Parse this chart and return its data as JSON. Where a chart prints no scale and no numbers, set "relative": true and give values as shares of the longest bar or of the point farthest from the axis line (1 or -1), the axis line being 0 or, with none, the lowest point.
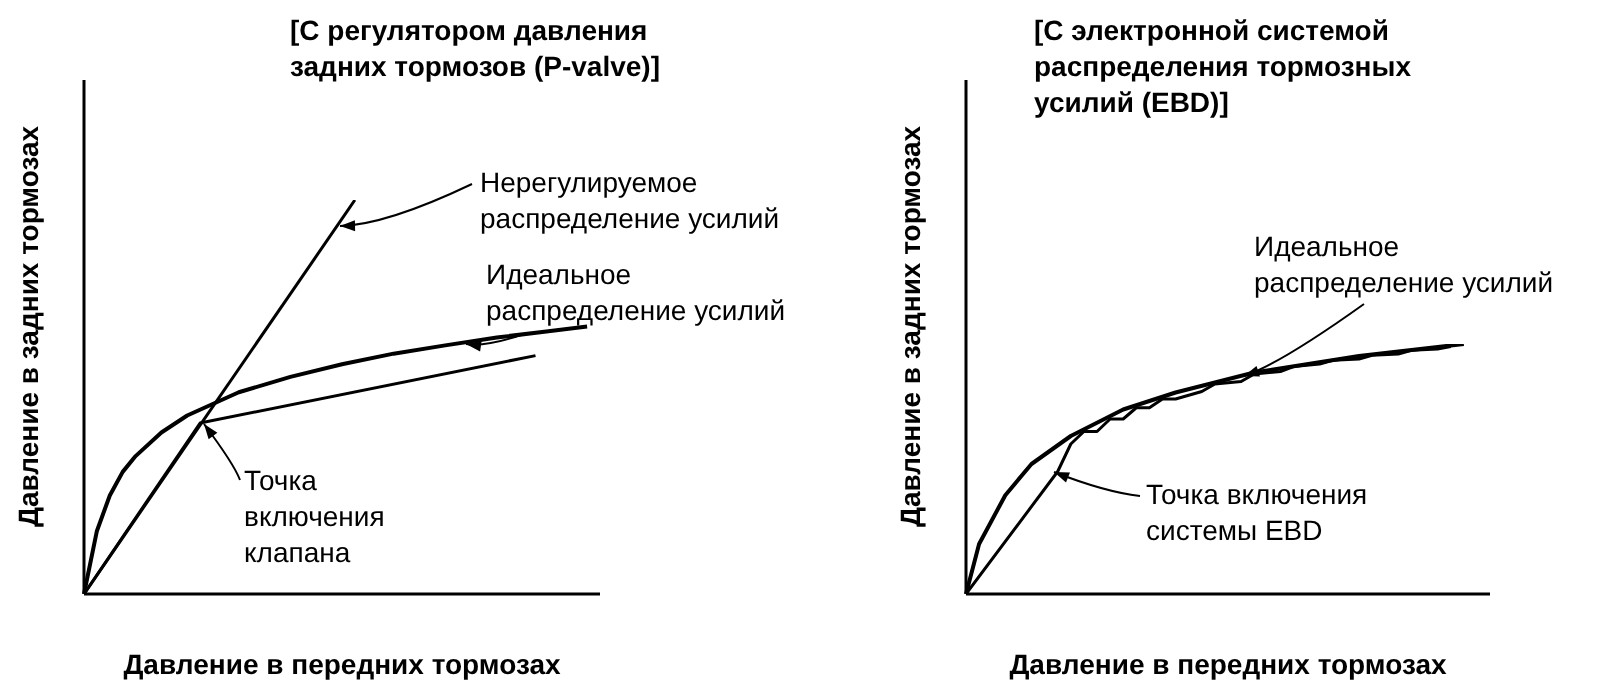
{
  "chart_data": [
    {
      "type": "line",
      "title": "[С регулятором давления\nзадних тормозов (P-valve)]",
      "xlabel": "Давление в передних тормозах",
      "ylabel": "Давление в задних тормозах",
      "relative": true,
      "marker": "none",
      "line_style": "solid",
      "categories": [
        null,
        null,
        null,
        null,
        null,
        null,
        null,
        null,
        null,
        null,
        null,
        null,
        null,
        null,
        null,
        null,
        null,
        null,
        null,
        null,
        null,
        null,
        null,
        null,
        null,
        null,
        null,
        null,
        null,
        null,
        null,
        null,
        null,
        null,
        null,
        null,
        null,
        null,
        null,
        null,
        null
      ],
      "series": [
        {
          "color": "#000000",
          "values": [
            0,
            null,
            null,
            null,
            null,
            null,
            null,
            null,
            null,
            null,
            null,
            null,
            null,
            null,
            null,
            null,
            null,
            null,
            null,
            null,
            null,
            1,
            null,
            null,
            null,
            null,
            null,
            null,
            null,
            null,
            null,
            null,
            null,
            null,
            null,
            null,
            null,
            null,
            null,
            null,
            null
          ]
        },
        {
          "color": "#000000",
          "values": [
            0,
            0.16,
            0.25,
            0.31,
            0.35,
            null,
            0.41,
            null,
            0.453,
            null,
            null,
            null,
            0.512,
            null,
            null,
            null,
            0.551,
            null,
            null,
            null,
            0.583,
            null,
            null,
            null,
            0.61,
            null,
            null,
            null,
            0.631,
            null,
            null,
            null,
            0.651,
            null,
            null,
            null,
            0.667,
            null,
            null,
            0.679,
            null
          ]
        },
        {
          "color": "#000000",
          "values": [
            0,
            null,
            null,
            null,
            null,
            null,
            null,
            null,
            null,
            0.434,
            null,
            null,
            null,
            null,
            null,
            null,
            null,
            null,
            null,
            null,
            null,
            null,
            null,
            null,
            null,
            null,
            null,
            null,
            null,
            null,
            null,
            null,
            null,
            null,
            null,
            0.605,
            null,
            null,
            null,
            null,
            null
          ]
        }
      ],
      "annotations": [
        "Нерегулируемое\nраспределение усилий",
        "Идеальное\nраспределение усилий",
        "Точка\nвключения\nклапана"
      ]
    },
    {
      "type": "line",
      "title": "[С электронной системой\nраспределения тормозных\nусилий (EBD)]",
      "xlabel": "Давление в передних тормозах",
      "ylabel": "Давление в задних тормозах",
      "relative": true,
      "marker": "none",
      "line_style": "solid",
      "categories": [
        null,
        null,
        null,
        null,
        null,
        null,
        null,
        null,
        null,
        null,
        null,
        null,
        null,
        null,
        null,
        null,
        null,
        null,
        null,
        null,
        null,
        null,
        null,
        null,
        null,
        null,
        null,
        null,
        null,
        null,
        null,
        null,
        null,
        null,
        null,
        null,
        null,
        null,
        null,
        null,
        null
      ],
      "series": [
        {
          "color": "#000000",
          "values": [
            0,
            0.2,
            null,
            0.395,
            null,
            0.52,
            null,
            null,
            0.632,
            null,
            null,
            null,
            0.738,
            null,
            null,
            null,
            0.806,
            null,
            null,
            null,
            null,
            null,
            0.886,
            null,
            null,
            null,
            null,
            null,
            null,
            null,
            0.952,
            null,
            null,
            null,
            null,
            null,
            null,
            null,
            1,
            null,
            null
          ]
        },
        {
          "color": "#000000",
          "values": [
            0,
            null,
            null,
            null,
            null,
            null,
            null,
            0.49,
            0.6,
            0.65,
            0.65,
            0.7,
            0.7,
            0.745,
            0.745,
            0.78,
            0.78,
            null,
            0.81,
            0.84,
            null,
            0.85,
            0.88,
            null,
            0.89,
            0.91,
            null,
            0.92,
            0.935,
            null,
            0.94,
            0.955,
            null,
            0.96,
            0.975,
            null,
            0.98,
            0.99,
            null,
            null,
            null
          ]
        }
      ],
      "annotations": [
        "Идеальное\nраспределение усилий",
        "Точка включения\nсистемы EBD"
      ]
    }
  ]
}
